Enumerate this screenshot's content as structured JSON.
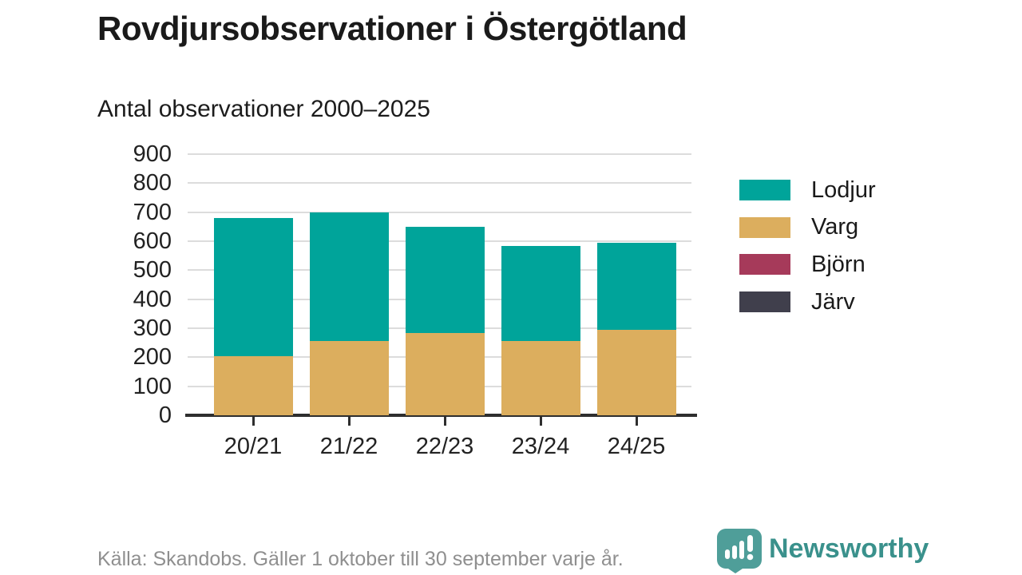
{
  "title": "Rovdjursobservationer i Östergötland",
  "subtitle": "Antal observationer 2000–2025",
  "footer": {
    "source_note": "Källa: Skandobs. Gäller 1 oktober till 30 september varje år."
  },
  "logo": {
    "text": "Newsworthy",
    "icon": "newsworthy-speech-bubble-barchart-icon",
    "icon_color": "#4f9e99",
    "text_color": "#3a918c"
  },
  "colors": {
    "grid": "#dcdcdc",
    "axis": "#2e2e2e",
    "text": "#222222",
    "muted_text": "#8f8f8f"
  },
  "chart_data": {
    "type": "bar",
    "stacked": true,
    "title": "Rovdjursobservationer i Östergötland",
    "subtitle": "Antal observationer 2000–2025",
    "xlabel": "",
    "ylabel": "",
    "categories": [
      "20/21",
      "21/22",
      "22/23",
      "23/24",
      "24/25"
    ],
    "series": [
      {
        "name": "Lodjur",
        "color": "#00a49a",
        "values": [
          478,
          443,
          365,
          329,
          300
        ]
      },
      {
        "name": "Varg",
        "color": "#dcae5e",
        "values": [
          203,
          257,
          284,
          255,
          295
        ]
      },
      {
        "name": "Björn",
        "color": "#a63a5a",
        "values": [
          0,
          0,
          0,
          0,
          0
        ]
      },
      {
        "name": "Järv",
        "color": "#403f4c",
        "values": [
          0,
          0,
          0,
          0,
          0
        ]
      }
    ],
    "stack_order_bottom_to_top": [
      "Varg",
      "Lodjur",
      "Björn",
      "Järv"
    ],
    "totals": [
      681,
      700,
      649,
      584,
      595
    ],
    "ylim": [
      0,
      900
    ],
    "yticks": [
      0,
      100,
      200,
      300,
      400,
      500,
      600,
      700,
      800,
      900
    ],
    "grid": true,
    "legend_position": "right"
  }
}
